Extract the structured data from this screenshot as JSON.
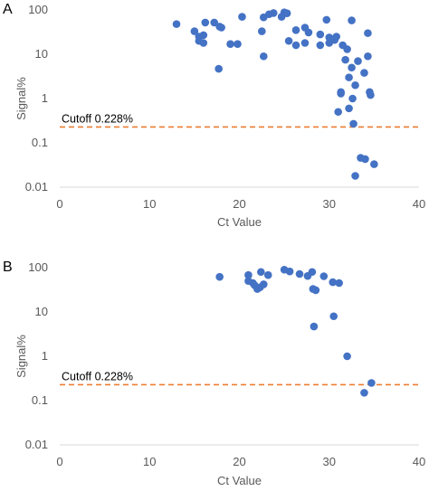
{
  "chart_data": [
    {
      "type": "scatter",
      "panel_label": "A",
      "xlabel": "Ct Value",
      "ylabel": "Signal%",
      "xlim": [
        0,
        40
      ],
      "ylim": [
        0.01,
        100
      ],
      "ylog": true,
      "xticks": [
        "0",
        "10",
        "20",
        "30",
        "40"
      ],
      "yticks": [
        "100",
        "10",
        "1",
        "0.1",
        "0.01"
      ],
      "grid": false,
      "legend": "none",
      "marker_color": "#4472c4",
      "cutoff": {
        "value": 0.228,
        "label": "Cutoff 0.228%",
        "color": "#ed7d31"
      },
      "points": [
        {
          "x": 13,
          "y": 48
        },
        {
          "x": 15,
          "y": 33
        },
        {
          "x": 15.5,
          "y": 25
        },
        {
          "x": 15.5,
          "y": 20
        },
        {
          "x": 16,
          "y": 27
        },
        {
          "x": 16,
          "y": 18
        },
        {
          "x": 16.2,
          "y": 52
        },
        {
          "x": 17.2,
          "y": 52
        },
        {
          "x": 17.8,
          "y": 42
        },
        {
          "x": 18,
          "y": 40
        },
        {
          "x": 17.7,
          "y": 4.7
        },
        {
          "x": 19,
          "y": 17
        },
        {
          "x": 19.8,
          "y": 17
        },
        {
          "x": 20.3,
          "y": 70
        },
        {
          "x": 22.5,
          "y": 33
        },
        {
          "x": 22.7,
          "y": 68
        },
        {
          "x": 22.7,
          "y": 9
        },
        {
          "x": 23.3,
          "y": 80
        },
        {
          "x": 23.8,
          "y": 85
        },
        {
          "x": 24.7,
          "y": 70
        },
        {
          "x": 25,
          "y": 88
        },
        {
          "x": 25.3,
          "y": 84
        },
        {
          "x": 25.5,
          "y": 20
        },
        {
          "x": 26.3,
          "y": 35
        },
        {
          "x": 26.3,
          "y": 16
        },
        {
          "x": 27.3,
          "y": 40
        },
        {
          "x": 27.3,
          "y": 18
        },
        {
          "x": 27.7,
          "y": 31
        },
        {
          "x": 29,
          "y": 28
        },
        {
          "x": 29,
          "y": 16
        },
        {
          "x": 29.7,
          "y": 60
        },
        {
          "x": 30,
          "y": 24
        },
        {
          "x": 30,
          "y": 18
        },
        {
          "x": 30.6,
          "y": 21
        },
        {
          "x": 30.8,
          "y": 25
        },
        {
          "x": 31,
          "y": 0.5
        },
        {
          "x": 31.3,
          "y": 1.4
        },
        {
          "x": 31.3,
          "y": 1.3
        },
        {
          "x": 31.5,
          "y": 16
        },
        {
          "x": 31.8,
          "y": 7.5
        },
        {
          "x": 32,
          "y": 13
        },
        {
          "x": 32.2,
          "y": 0.6
        },
        {
          "x": 32.2,
          "y": 3
        },
        {
          "x": 32.5,
          "y": 58
        },
        {
          "x": 32.5,
          "y": 5
        },
        {
          "x": 32.6,
          "y": 1
        },
        {
          "x": 32.7,
          "y": 0.27
        },
        {
          "x": 32.9,
          "y": 2
        },
        {
          "x": 32.9,
          "y": 0.018
        },
        {
          "x": 33.2,
          "y": 7
        },
        {
          "x": 33.5,
          "y": 0.046
        },
        {
          "x": 33.9,
          "y": 3.8
        },
        {
          "x": 34,
          "y": 0.043
        },
        {
          "x": 34.3,
          "y": 30
        },
        {
          "x": 34.3,
          "y": 9
        },
        {
          "x": 34.5,
          "y": 1.4
        },
        {
          "x": 34.6,
          "y": 1.2
        },
        {
          "x": 35,
          "y": 0.033
        }
      ]
    },
    {
      "type": "scatter",
      "panel_label": "B",
      "xlabel": "Ct Value",
      "ylabel": "Signal%",
      "xlim": [
        0,
        40
      ],
      "ylim": [
        0.01,
        100
      ],
      "ylog": true,
      "xticks": [
        "0",
        "10",
        "20",
        "30",
        "40"
      ],
      "yticks": [
        "100",
        "10",
        "1",
        "0.1",
        "0.01"
      ],
      "grid": false,
      "legend": "none",
      "marker_color": "#4472c4",
      "cutoff": {
        "value": 0.228,
        "label": "Cutoff 0.228%",
        "color": "#ed7d31"
      },
      "points": [
        {
          "x": 17.8,
          "y": 62
        },
        {
          "x": 21,
          "y": 68
        },
        {
          "x": 21,
          "y": 50
        },
        {
          "x": 21.5,
          "y": 45
        },
        {
          "x": 21.7,
          "y": 40
        },
        {
          "x": 22,
          "y": 33
        },
        {
          "x": 22.3,
          "y": 36
        },
        {
          "x": 22.4,
          "y": 80
        },
        {
          "x": 22.7,
          "y": 42
        },
        {
          "x": 23.2,
          "y": 68
        },
        {
          "x": 25,
          "y": 90
        },
        {
          "x": 25.6,
          "y": 82
        },
        {
          "x": 26.7,
          "y": 72
        },
        {
          "x": 27.6,
          "y": 65
        },
        {
          "x": 28.1,
          "y": 80
        },
        {
          "x": 28.2,
          "y": 33
        },
        {
          "x": 28.5,
          "y": 31
        },
        {
          "x": 28.3,
          "y": 4.7
        },
        {
          "x": 29.4,
          "y": 64
        },
        {
          "x": 30.4,
          "y": 47
        },
        {
          "x": 30.5,
          "y": 8
        },
        {
          "x": 31.1,
          "y": 45
        },
        {
          "x": 32,
          "y": 1
        },
        {
          "x": 33.9,
          "y": 0.15
        },
        {
          "x": 34.7,
          "y": 0.25
        }
      ]
    }
  ]
}
